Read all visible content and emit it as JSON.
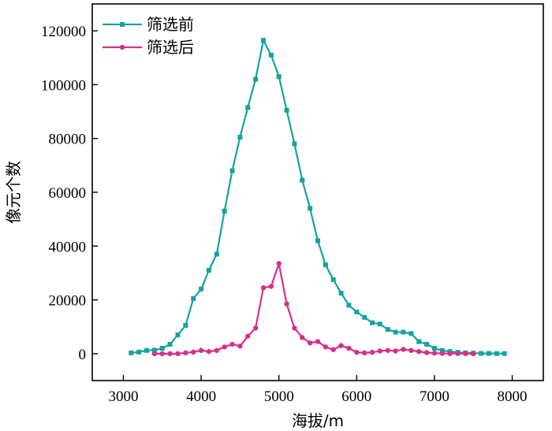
{
  "chart_data": {
    "type": "line",
    "title": "",
    "xlabel": "海拔/m",
    "ylabel": "像元个数",
    "xlim": [
      2600,
      8400
    ],
    "ylim": [
      -10000,
      130000
    ],
    "xticks": [
      3000,
      4000,
      5000,
      6000,
      7000,
      8000
    ],
    "yticks": [
      0,
      20000,
      40000,
      60000,
      80000,
      100000,
      120000
    ],
    "grid": false,
    "legend_position": "top-left",
    "series": [
      {
        "name": "筛选前",
        "color": "#16A2A0",
        "marker": "square",
        "x": [
          3100,
          3200,
          3300,
          3400,
          3500,
          3600,
          3700,
          3800,
          3900,
          4000,
          4100,
          4200,
          4300,
          4400,
          4500,
          4600,
          4700,
          4800,
          4900,
          5000,
          5100,
          5200,
          5300,
          5400,
          5500,
          5600,
          5700,
          5800,
          5900,
          6000,
          6100,
          6200,
          6300,
          6400,
          6500,
          6600,
          6700,
          6800,
          6900,
          7000,
          7100,
          7200,
          7300,
          7400,
          7500,
          7600,
          7700,
          7800,
          7900
        ],
        "y": [
          300,
          600,
          1200,
          1300,
          2000,
          3500,
          7000,
          10500,
          20500,
          24000,
          31000,
          37000,
          53000,
          68000,
          80500,
          91500,
          102000,
          116500,
          111000,
          103000,
          90500,
          78000,
          64500,
          54000,
          42000,
          33000,
          27500,
          22500,
          18000,
          15500,
          13500,
          11500,
          11000,
          9000,
          8000,
          8000,
          7500,
          4500,
          3500,
          2000,
          1200,
          800,
          500,
          300,
          200,
          100,
          100,
          50,
          50
        ]
      },
      {
        "name": "筛选后",
        "color": "#D62F88",
        "marker": "circle",
        "x": [
          3400,
          3500,
          3600,
          3700,
          3800,
          3900,
          4000,
          4100,
          4200,
          4300,
          4400,
          4500,
          4600,
          4700,
          4800,
          4900,
          5000,
          5100,
          5200,
          5300,
          5400,
          5500,
          5600,
          5700,
          5800,
          5900,
          6000,
          6100,
          6200,
          6300,
          6400,
          6500,
          6600,
          6700,
          6800,
          6900,
          7000,
          7100,
          7200,
          7300,
          7400,
          7500
        ],
        "y": [
          0,
          0,
          0,
          0,
          300,
          600,
          1200,
          800,
          1200,
          2500,
          3500,
          2800,
          6500,
          9500,
          24500,
          25000,
          33500,
          18500,
          9500,
          6000,
          4000,
          4500,
          2500,
          1500,
          3000,
          2000,
          500,
          300,
          500,
          1000,
          1200,
          1000,
          1600,
          1200,
          800,
          400,
          200,
          100,
          50,
          50,
          50,
          0
        ]
      }
    ]
  }
}
